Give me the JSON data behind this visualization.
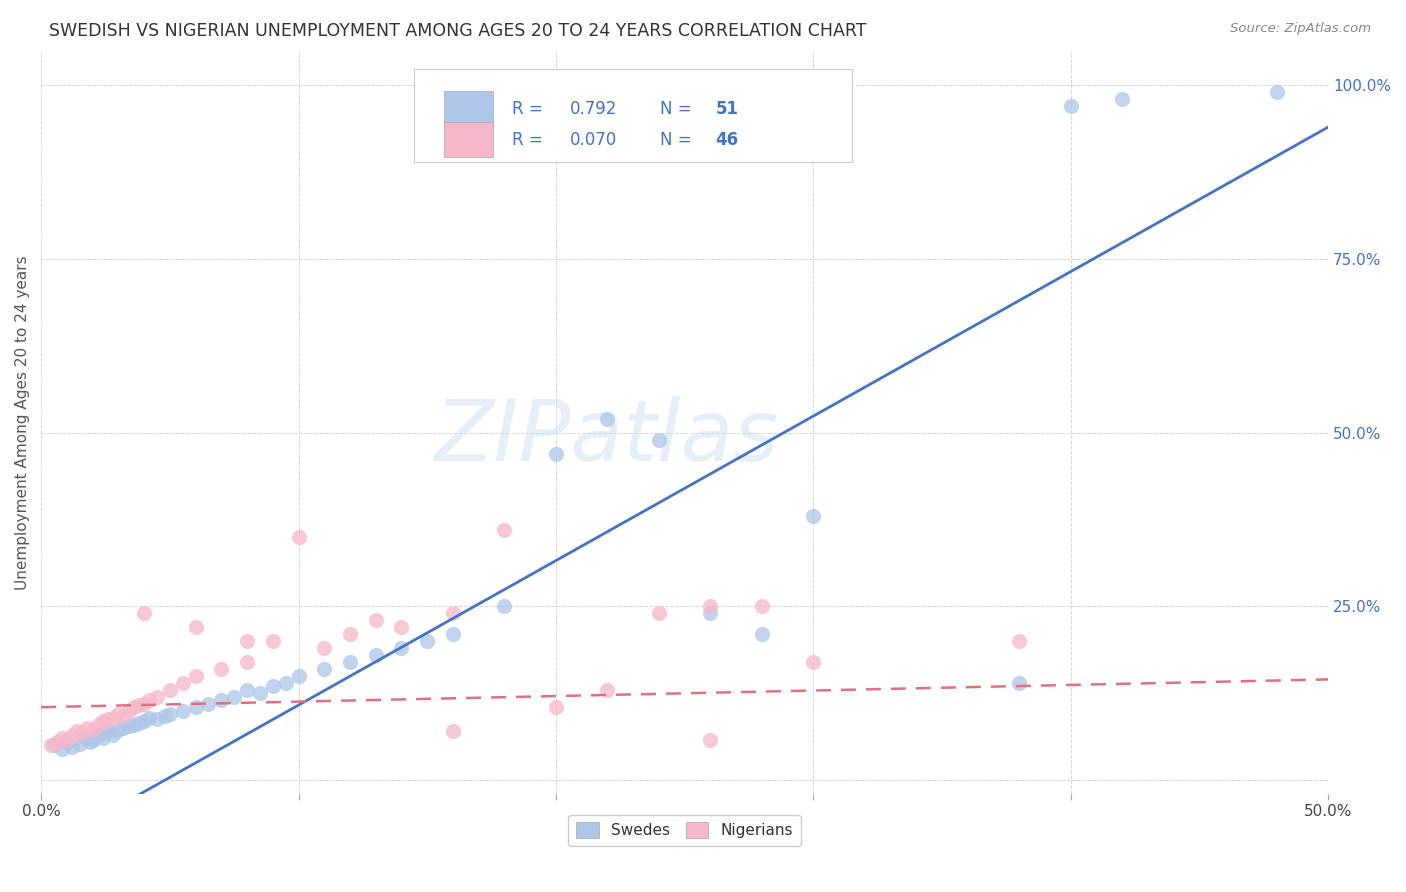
{
  "title": "SWEDISH VS NIGERIAN UNEMPLOYMENT AMONG AGES 20 TO 24 YEARS CORRELATION CHART",
  "source": "Source: ZipAtlas.com",
  "ylabel": "Unemployment Among Ages 20 to 24 years",
  "xlim": [
    0.0,
    0.5
  ],
  "ylim": [
    -0.02,
    1.05
  ],
  "x_ticks": [
    0.0,
    0.1,
    0.2,
    0.3,
    0.4,
    0.5
  ],
  "x_tick_labels": [
    "0.0%",
    "",
    "",
    "",
    "",
    "50.0%"
  ],
  "y_ticks": [
    0.0,
    0.25,
    0.5,
    0.75,
    1.0
  ],
  "y_tick_labels": [
    "",
    "25.0%",
    "50.0%",
    "75.0%",
    "100.0%"
  ],
  "sweden_color": "#aec6e8",
  "nigeria_color": "#f5b8c8",
  "sweden_line_color": "#4472c4",
  "nigeria_line_color": "#e07080",
  "legend_blue_color": "#4472c4",
  "sweden_slope": 2.08,
  "sweden_intercept": -0.1,
  "nigeria_slope": 0.08,
  "nigeria_intercept": 0.105,
  "sweden_scatter_x": [
    0.005,
    0.008,
    0.01,
    0.012,
    0.015,
    0.017,
    0.019,
    0.02,
    0.021,
    0.022,
    0.024,
    0.025,
    0.026,
    0.028,
    0.03,
    0.032,
    0.034,
    0.036,
    0.038,
    0.04,
    0.042,
    0.045,
    0.048,
    0.05,
    0.055,
    0.06,
    0.065,
    0.07,
    0.075,
    0.08,
    0.085,
    0.09,
    0.095,
    0.1,
    0.11,
    0.12,
    0.13,
    0.14,
    0.15,
    0.16,
    0.18,
    0.2,
    0.22,
    0.24,
    0.26,
    0.28,
    0.3,
    0.38,
    0.4,
    0.42,
    0.48
  ],
  "sweden_scatter_y": [
    0.05,
    0.045,
    0.055,
    0.048,
    0.052,
    0.06,
    0.055,
    0.058,
    0.062,
    0.065,
    0.06,
    0.068,
    0.07,
    0.065,
    0.072,
    0.075,
    0.078,
    0.08,
    0.082,
    0.085,
    0.09,
    0.088,
    0.092,
    0.095,
    0.1,
    0.105,
    0.11,
    0.115,
    0.12,
    0.13,
    0.125,
    0.135,
    0.14,
    0.15,
    0.16,
    0.17,
    0.18,
    0.19,
    0.2,
    0.21,
    0.25,
    0.47,
    0.52,
    0.49,
    0.24,
    0.21,
    0.38,
    0.14,
    0.97,
    0.98,
    0.99
  ],
  "nigeria_scatter_x": [
    0.004,
    0.006,
    0.008,
    0.01,
    0.012,
    0.014,
    0.016,
    0.018,
    0.02,
    0.022,
    0.024,
    0.026,
    0.028,
    0.03,
    0.032,
    0.034,
    0.036,
    0.038,
    0.04,
    0.042,
    0.045,
    0.05,
    0.055,
    0.06,
    0.07,
    0.08,
    0.09,
    0.1,
    0.11,
    0.12,
    0.13,
    0.14,
    0.16,
    0.18,
    0.2,
    0.22,
    0.24,
    0.26,
    0.28,
    0.3,
    0.04,
    0.06,
    0.08,
    0.16,
    0.26,
    0.38
  ],
  "nigeria_scatter_y": [
    0.05,
    0.055,
    0.06,
    0.058,
    0.065,
    0.07,
    0.068,
    0.075,
    0.072,
    0.08,
    0.085,
    0.088,
    0.09,
    0.095,
    0.092,
    0.1,
    0.105,
    0.108,
    0.11,
    0.115,
    0.12,
    0.13,
    0.14,
    0.15,
    0.16,
    0.17,
    0.2,
    0.35,
    0.19,
    0.21,
    0.23,
    0.22,
    0.24,
    0.36,
    0.105,
    0.13,
    0.24,
    0.25,
    0.25,
    0.17,
    0.24,
    0.22,
    0.2,
    0.07,
    0.058,
    0.2
  ],
  "watermark_text": "ZIPatlas",
  "bottom_legend_labels": [
    "Swedes",
    "Nigerians"
  ]
}
